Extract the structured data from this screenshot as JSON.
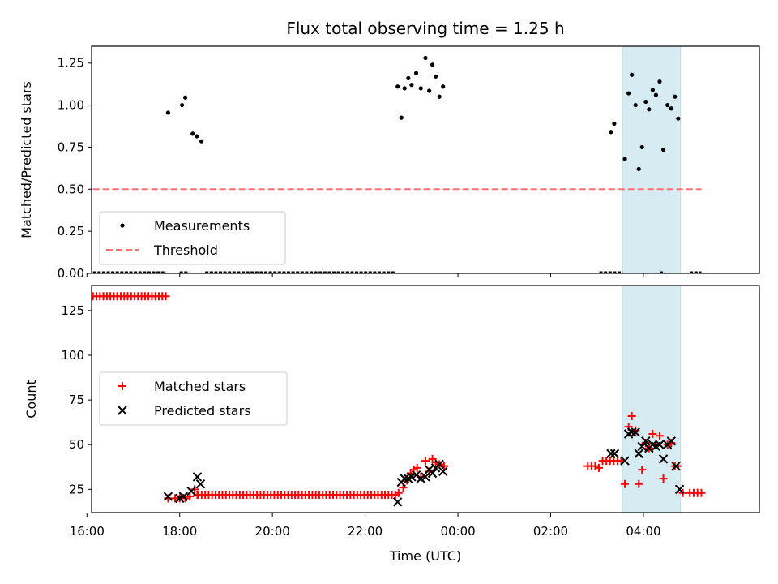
{
  "chart_data": {
    "title": "Flux total observing time = 1.25 h",
    "xlabel": "Time (UTC)",
    "xlim": [
      16.1,
      30.5
    ],
    "x_ticks": [
      {
        "value": 16,
        "label": "16:00"
      },
      {
        "value": 18,
        "label": "18:00"
      },
      {
        "value": 20,
        "label": "20:00"
      },
      {
        "value": 22,
        "label": "22:00"
      },
      {
        "value": 24,
        "label": "00:00"
      },
      {
        "value": 26,
        "label": "02:00"
      },
      {
        "value": 28,
        "label": "04:00"
      }
    ],
    "highlight_span": {
      "x0": 27.55,
      "x1": 28.8,
      "color": "#add8e6"
    },
    "panels": [
      {
        "type": "scatter",
        "ylabel": "Matched/Predicted stars",
        "ylim": [
          0,
          1.35
        ],
        "y_ticks": [
          {
            "value": 0,
            "label": "0.00"
          },
          {
            "value": 0.25,
            "label": "0.25"
          },
          {
            "value": 0.5,
            "label": "0.50"
          },
          {
            "value": 0.75,
            "label": "0.75"
          },
          {
            "value": 1.0,
            "label": "1.00"
          },
          {
            "value": 1.25,
            "label": "1.25"
          }
        ],
        "legend": {
          "position": "lower-left",
          "items": [
            {
              "label": "Measurements",
              "marker": "dot",
              "color": "#000000"
            },
            {
              "label": "Threshold",
              "marker": "dashed-line",
              "color": "#ff7070"
            }
          ]
        },
        "threshold": {
          "y": 0.5,
          "x0": 16.13,
          "x1": 29.25,
          "color": "#ff7070"
        },
        "zero_segments": [
          [
            16.13,
            17.7
          ],
          [
            18.0,
            18.2
          ],
          [
            18.55,
            22.65
          ],
          [
            27.05,
            27.55
          ],
          [
            28.35,
            28.45
          ],
          [
            29.0,
            29.25
          ]
        ],
        "measurements": {
          "color": "#000000",
          "points": [
            [
              17.75,
              0.955
            ],
            [
              18.05,
              1.0
            ],
            [
              18.12,
              1.045
            ],
            [
              18.28,
              0.83
            ],
            [
              18.37,
              0.815
            ],
            [
              18.47,
              0.785
            ],
            [
              22.7,
              1.11
            ],
            [
              22.78,
              0.925
            ],
            [
              22.85,
              1.1
            ],
            [
              22.93,
              1.16
            ],
            [
              23.0,
              1.12
            ],
            [
              23.1,
              1.19
            ],
            [
              23.2,
              1.1
            ],
            [
              23.3,
              1.28
            ],
            [
              23.38,
              1.085
            ],
            [
              23.45,
              1.24
            ],
            [
              23.52,
              1.17
            ],
            [
              23.6,
              1.05
            ],
            [
              23.68,
              1.11
            ],
            [
              27.3,
              0.84
            ],
            [
              27.37,
              0.89
            ],
            [
              27.6,
              0.68
            ],
            [
              27.68,
              1.07
            ],
            [
              27.75,
              1.18
            ],
            [
              27.83,
              1.0
            ],
            [
              27.9,
              0.62
            ],
            [
              27.97,
              0.75
            ],
            [
              28.05,
              1.02
            ],
            [
              28.12,
              0.975
            ],
            [
              28.2,
              1.09
            ],
            [
              28.27,
              1.06
            ],
            [
              28.35,
              1.14
            ],
            [
              28.43,
              0.735
            ],
            [
              28.52,
              1.0
            ],
            [
              28.6,
              0.98
            ],
            [
              28.68,
              1.05
            ],
            [
              28.75,
              0.92
            ]
          ]
        }
      },
      {
        "type": "scatter",
        "ylabel": "Count",
        "ylim": [
          12,
          139
        ],
        "y_ticks": [
          {
            "value": 25,
            "label": "25"
          },
          {
            "value": 50,
            "label": "50"
          },
          {
            "value": 75,
            "label": "75"
          },
          {
            "value": 100,
            "label": "100"
          },
          {
            "value": 125,
            "label": "125"
          }
        ],
        "legend": {
          "position": "center-left",
          "items": [
            {
              "label": "Matched stars",
              "marker": "plus",
              "color": "#ff0000"
            },
            {
              "label": "Predicted stars",
              "marker": "x",
              "color": "#000000"
            }
          ]
        },
        "series": [
          {
            "name": "Matched stars",
            "marker": "plus",
            "color": "#ff0000",
            "runs": [
              {
                "x0": 16.13,
                "x1": 17.7,
                "y": 133,
                "n": 22
              },
              {
                "x0": 18.4,
                "x1": 22.65,
                "y": 22,
                "n": 58
              },
              {
                "x0": 29.0,
                "x1": 29.25,
                "y": 23,
                "n": 4
              }
            ],
            "points": [
              [
                17.75,
                20
              ],
              [
                17.9,
                20
              ],
              [
                18.0,
                20
              ],
              [
                18.12,
                20
              ],
              [
                18.22,
                21
              ],
              [
                18.32,
                25
              ],
              [
                18.38,
                22
              ],
              [
                22.72,
                23
              ],
              [
                22.82,
                26
              ],
              [
                22.9,
                30
              ],
              [
                22.98,
                34
              ],
              [
                23.05,
                36
              ],
              [
                23.12,
                37
              ],
              [
                23.2,
                32
              ],
              [
                23.3,
                41
              ],
              [
                23.38,
                35
              ],
              [
                23.45,
                42
              ],
              [
                23.52,
                40
              ],
              [
                23.6,
                39
              ],
              [
                23.7,
                38
              ],
              [
                26.8,
                38
              ],
              [
                26.88,
                38
              ],
              [
                26.96,
                38
              ],
              [
                27.04,
                37
              ],
              [
                27.12,
                41
              ],
              [
                27.2,
                41
              ],
              [
                27.28,
                41
              ],
              [
                27.36,
                41
              ],
              [
                27.44,
                41
              ],
              [
                27.52,
                41
              ],
              [
                27.6,
                28
              ],
              [
                27.68,
                60
              ],
              [
                27.75,
                66
              ],
              [
                27.83,
                58
              ],
              [
                27.9,
                28
              ],
              [
                27.97,
                36
              ],
              [
                28.05,
                51
              ],
              [
                28.12,
                48
              ],
              [
                28.2,
                56
              ],
              [
                28.27,
                50
              ],
              [
                28.35,
                55
              ],
              [
                28.43,
                31
              ],
              [
                28.52,
                50
              ],
              [
                28.6,
                51
              ],
              [
                28.68,
                38
              ],
              [
                28.75,
                38
              ],
              [
                28.85,
                23
              ]
            ]
          },
          {
            "name": "Predicted stars",
            "marker": "x",
            "color": "#000000",
            "points": [
              [
                17.75,
                21
              ],
              [
                18.0,
                20
              ],
              [
                18.08,
                21
              ],
              [
                18.25,
                24
              ],
              [
                18.38,
                32
              ],
              [
                18.45,
                28
              ],
              [
                22.7,
                18
              ],
              [
                22.78,
                29
              ],
              [
                22.85,
                31
              ],
              [
                22.93,
                31
              ],
              [
                23.0,
                32
              ],
              [
                23.1,
                33
              ],
              [
                23.2,
                31
              ],
              [
                23.3,
                32
              ],
              [
                23.38,
                36
              ],
              [
                23.45,
                34
              ],
              [
                23.52,
                37
              ],
              [
                23.6,
                39
              ],
              [
                23.68,
                35
              ],
              [
                27.3,
                45
              ],
              [
                27.38,
                45
              ],
              [
                27.6,
                41
              ],
              [
                27.68,
                56
              ],
              [
                27.75,
                57
              ],
              [
                27.83,
                57
              ],
              [
                27.9,
                45
              ],
              [
                27.97,
                49
              ],
              [
                28.05,
                52
              ],
              [
                28.12,
                48
              ],
              [
                28.2,
                50
              ],
              [
                28.27,
                49
              ],
              [
                28.35,
                50
              ],
              [
                28.43,
                42
              ],
              [
                28.52,
                50
              ],
              [
                28.6,
                52
              ],
              [
                28.7,
                38
              ],
              [
                28.78,
                25
              ]
            ]
          }
        ]
      }
    ]
  }
}
